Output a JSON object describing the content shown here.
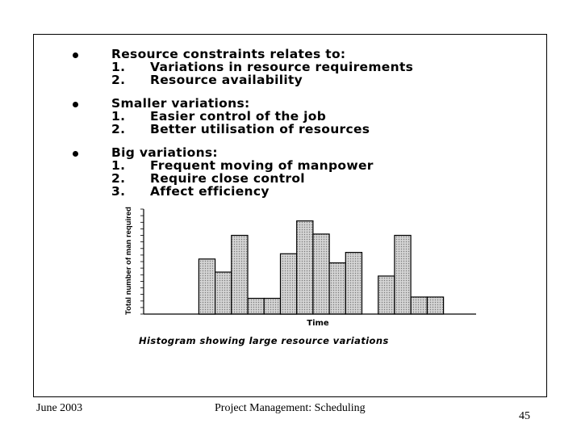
{
  "bullets": [
    {
      "heading": "Resource constraints relates to:",
      "items": [
        {
          "num": "1.",
          "text": "Variations in resource requirements"
        },
        {
          "num": "2.",
          "text": "Resource availability"
        }
      ]
    },
    {
      "heading": "Smaller variations:",
      "items": [
        {
          "num": "1.",
          "text": "Easier control of the job"
        },
        {
          "num": "2.",
          "text": "Better utilisation of resources"
        }
      ]
    },
    {
      "heading": "Big variations:",
      "items": [
        {
          "num": "1.",
          "text": "Frequent moving of manpower"
        },
        {
          "num": "2.",
          "text": "Require close control"
        },
        {
          "num": "3.",
          "text": "Affect efficiency"
        }
      ]
    }
  ],
  "chart_data": {
    "type": "bar",
    "title": "",
    "caption": "Histogram showing large resource variations",
    "xlabel": "Time",
    "ylabel": "Total number of man required",
    "ylim": [
      0,
      8
    ],
    "grid": false,
    "x": [
      0,
      1,
      2,
      3,
      4,
      5,
      6,
      7,
      8,
      9,
      10,
      11,
      12,
      13,
      14,
      15,
      16,
      17,
      18
    ],
    "values": [
      0,
      0,
      4.2,
      3.2,
      6.0,
      1.2,
      1.2,
      4.6,
      7.1,
      6.1,
      3.9,
      4.7,
      0,
      2.9,
      6.0,
      1.3,
      1.3,
      0,
      0
    ],
    "bar_fill": "#c8c8c8"
  },
  "footer": {
    "date": "June 2003",
    "title": "Project Management: Scheduling",
    "page": "45"
  }
}
